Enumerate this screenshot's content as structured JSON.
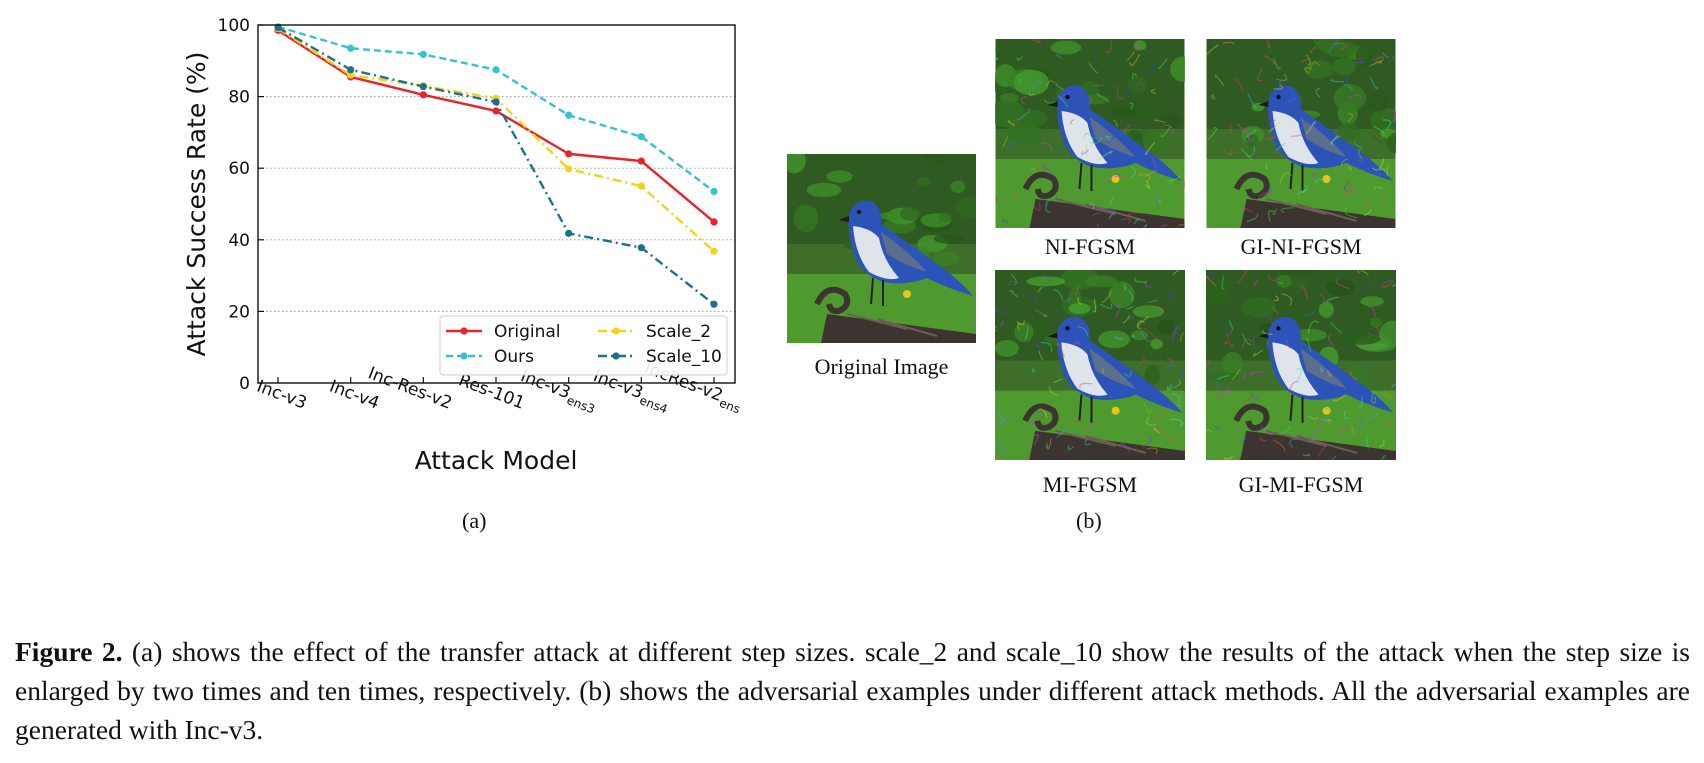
{
  "chart_data": {
    "type": "line",
    "categories": [
      "Inc-v3",
      "Inc-v4",
      "Inc-Res-v2",
      "Res-101",
      "Inc-v3ens3",
      "Inc-v3ens4",
      "IncRes-v2ens"
    ],
    "category_labels": [
      {
        "main": "Inc-v3",
        "sub": ""
      },
      {
        "main": "Inc-v4",
        "sub": ""
      },
      {
        "main": "Inc-Res-v2",
        "sub": ""
      },
      {
        "main": "Res-101",
        "sub": ""
      },
      {
        "main": "Inc-v3",
        "sub": "ens3"
      },
      {
        "main": "Inc-v3",
        "sub": "ens4"
      },
      {
        "main": "IncRes-v2",
        "sub": "ens"
      }
    ],
    "series": [
      {
        "name": "Original",
        "color": "#e8232a",
        "dash": "solid",
        "values": [
          98.5,
          85.5,
          80.5,
          76.0,
          64.0,
          62.0,
          45.0
        ]
      },
      {
        "name": "Ours",
        "color": "#35c3d3",
        "dash": "dashed",
        "values": [
          99.5,
          93.5,
          91.8,
          87.5,
          74.8,
          68.8,
          53.5
        ]
      },
      {
        "name": "Scale_2",
        "color": "#f5d21a",
        "dash": "dashdot",
        "values": [
          99.0,
          86.0,
          83.0,
          79.5,
          59.8,
          55.0,
          36.8
        ]
      },
      {
        "name": "Scale_10",
        "color": "#1e6f8e",
        "dash": "dashdot",
        "values": [
          99.3,
          87.5,
          82.8,
          78.5,
          41.8,
          37.8,
          22.0
        ]
      }
    ],
    "xlabel": "Attack Model",
    "ylabel": "Attack Success Rate (%)",
    "ylim": [
      0,
      100
    ],
    "yticks": [
      0,
      20,
      40,
      60,
      80,
      100
    ],
    "grid": "horizontal-dotted",
    "legend_placement": "lower-right"
  },
  "panels": {
    "a_label": "(a)",
    "b_label": "(b)",
    "images": [
      {
        "caption": "Original Image",
        "noise": "none"
      },
      {
        "caption": "NI-FGSM",
        "noise": "strong"
      },
      {
        "caption": "GI-NI-FGSM",
        "noise": "strong"
      },
      {
        "caption": "MI-FGSM",
        "noise": "strong"
      },
      {
        "caption": "GI-MI-FGSM",
        "noise": "strong"
      }
    ]
  },
  "caption": {
    "label": "Figure 2.",
    "text": " (a) shows the effect of the transfer attack at different step sizes. scale_2 and scale_10 show the results of the attack when the step size is enlarged by two times and ten times, respectively. (b) shows the adversarial examples under different attack methods. All the adversarial examples are generated with Inc-v3."
  },
  "colors": {
    "bird_blue": "#2c54b8",
    "grass_green": "#4f9a2e",
    "bench_dark": "#3b3430"
  }
}
